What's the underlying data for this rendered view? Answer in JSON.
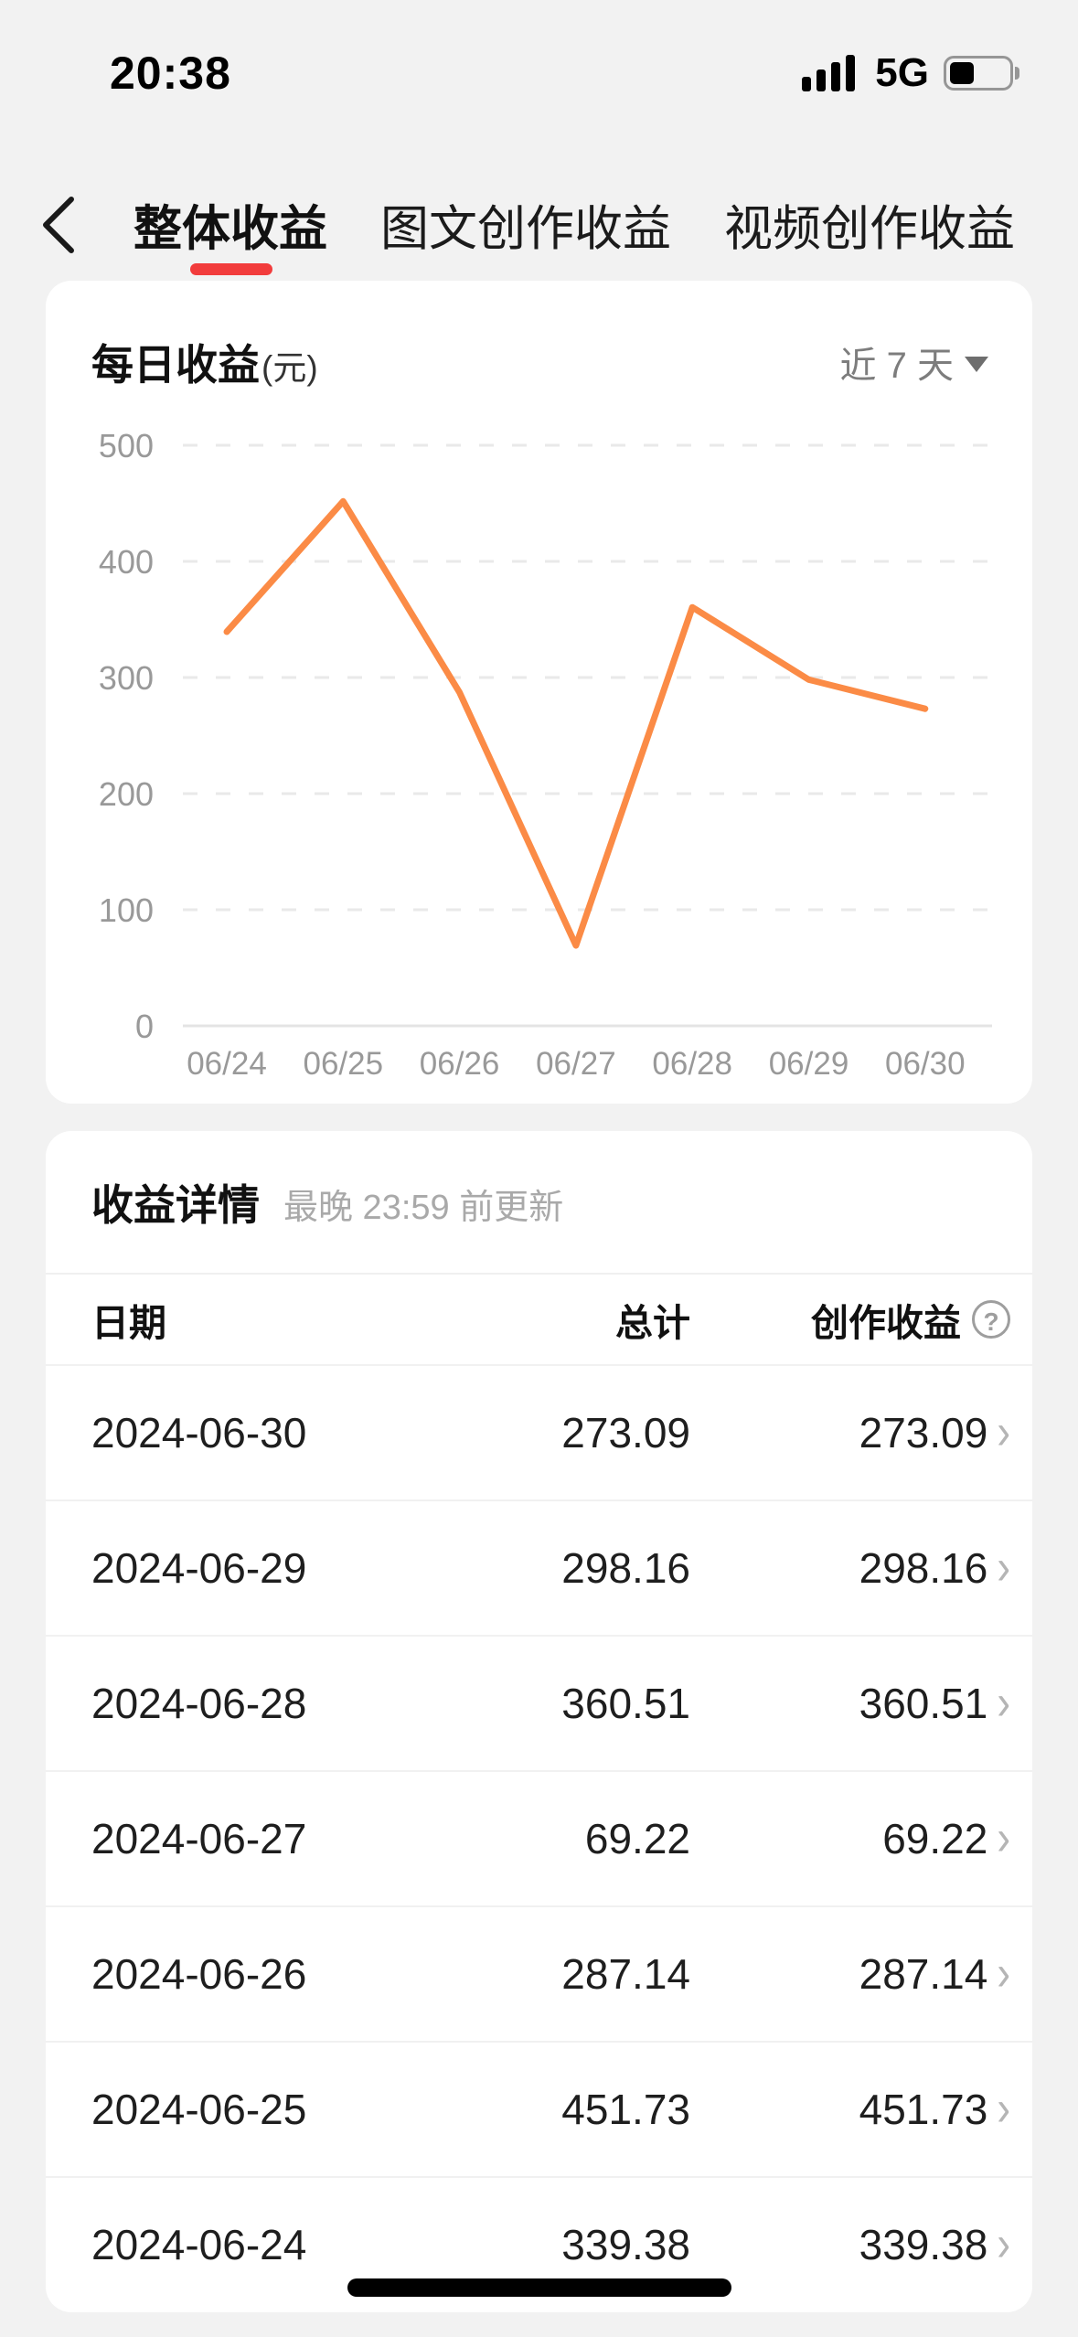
{
  "status_bar": {
    "time": "20:38",
    "network": "5G"
  },
  "nav": {
    "tabs": [
      {
        "label": "整体收益",
        "active": true
      },
      {
        "label": "图文创作收益",
        "active": false
      },
      {
        "label": "视频创作收益",
        "active": false
      }
    ]
  },
  "chart_card": {
    "title": "每日收益",
    "title_unit": "(元)",
    "range_selector": "近 7 天"
  },
  "chart_data": {
    "type": "line",
    "title": "每日收益(元)",
    "categories": [
      "06/24",
      "06/25",
      "06/26",
      "06/27",
      "06/28",
      "06/29",
      "06/30"
    ],
    "series": [
      {
        "name": "每日收益",
        "values": [
          339.38,
          451.73,
          287.14,
          69.22,
          360.51,
          298.16,
          273.09
        ]
      }
    ],
    "xlabel": "",
    "ylabel": "",
    "ylim": [
      0,
      500
    ],
    "yticks": [
      0,
      100,
      200,
      300,
      400,
      500
    ],
    "grid": "dashed-horizontal",
    "legend": "none"
  },
  "detail_card": {
    "title": "收益详情",
    "subtitle": "最晚 23:59 前更新",
    "columns": {
      "date": "日期",
      "total": "总计",
      "creation": "创作收益"
    },
    "rows": [
      {
        "date": "2024-06-30",
        "total": "273.09",
        "creation": "273.09"
      },
      {
        "date": "2024-06-29",
        "total": "298.16",
        "creation": "298.16"
      },
      {
        "date": "2024-06-28",
        "total": "360.51",
        "creation": "360.51"
      },
      {
        "date": "2024-06-27",
        "total": "69.22",
        "creation": "69.22"
      },
      {
        "date": "2024-06-26",
        "total": "287.14",
        "creation": "287.14"
      },
      {
        "date": "2024-06-25",
        "total": "451.73",
        "creation": "451.73"
      },
      {
        "date": "2024-06-24",
        "total": "339.38",
        "creation": "339.38"
      }
    ],
    "row_chevron": "›"
  },
  "colors": {
    "accent_red": "#f23c3c",
    "line_orange": "#fb8b46",
    "page_bg": "#f2f2f2",
    "grid_gray": "#e9e9e9",
    "axis_text": "#999999"
  }
}
